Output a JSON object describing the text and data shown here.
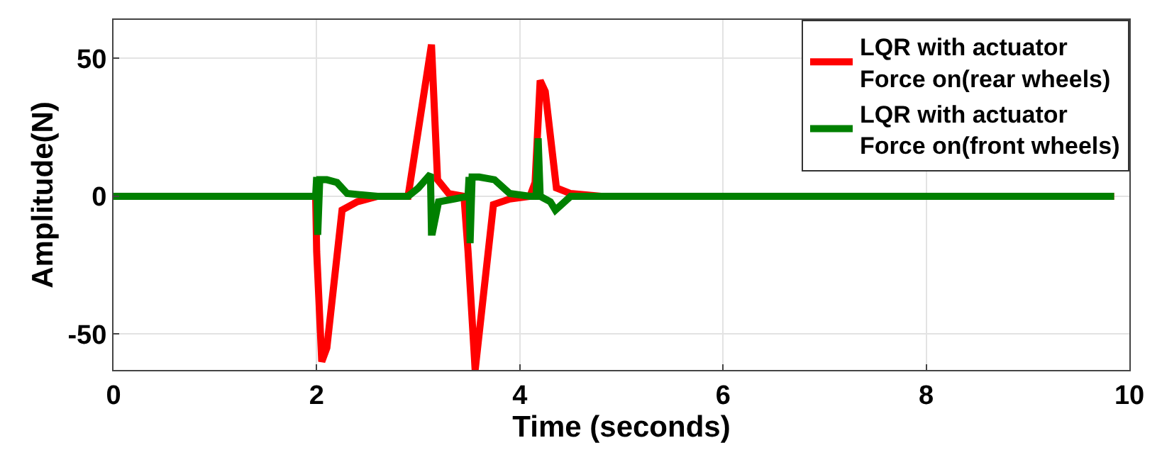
{
  "chart_data": {
    "type": "line",
    "xlabel": "Time (seconds)",
    "ylabel": "Amplitude(N)",
    "xlim": [
      0,
      10
    ],
    "ylim": [
      -63,
      64
    ],
    "xticks": [
      0,
      2,
      4,
      6,
      8,
      10
    ],
    "yticks": [
      -50,
      0,
      50
    ],
    "grid": true,
    "legend": "top right",
    "line_style": "solid",
    "marker": "none",
    "series": [
      {
        "name": "LQR with actuator Force on(rear wheels)",
        "color": "#ff0000",
        "x": [
          0,
          1.99,
          2.0,
          2.05,
          2.1,
          2.25,
          2.4,
          2.6,
          2.9,
          3.13,
          3.19,
          3.3,
          3.45,
          3.49,
          3.56,
          3.74,
          3.9,
          4.1,
          4.15,
          4.2,
          4.25,
          4.36,
          4.5,
          4.8,
          9.85
        ],
        "values": [
          0,
          0,
          -20,
          -60,
          -55,
          -5,
          -2,
          0,
          0,
          55,
          6,
          1,
          0,
          -20,
          -63,
          -3,
          -1,
          0,
          5,
          42,
          38,
          3,
          1,
          0,
          0
        ]
      },
      {
        "name": "LQR with actuator Force on(front wheels)",
        "color": "#008000",
        "x": [
          0,
          1.99,
          2.0,
          2.01,
          2.03,
          2.1,
          2.2,
          2.3,
          2.6,
          2.9,
          3.0,
          3.12,
          3.13,
          3.14,
          3.2,
          3.35,
          3.49,
          3.5,
          3.51,
          3.53,
          3.6,
          3.75,
          3.9,
          4.1,
          4.16,
          4.18,
          4.2,
          4.3,
          4.35,
          4.5,
          9.85
        ],
        "values": [
          0,
          0,
          7,
          -14,
          6,
          6,
          5,
          1,
          0,
          0,
          3,
          8,
          -13,
          -13,
          -2,
          -1,
          0,
          7,
          -17,
          7,
          7,
          6,
          1,
          0,
          0,
          21,
          0,
          -2,
          -5,
          0,
          0
        ]
      }
    ]
  }
}
